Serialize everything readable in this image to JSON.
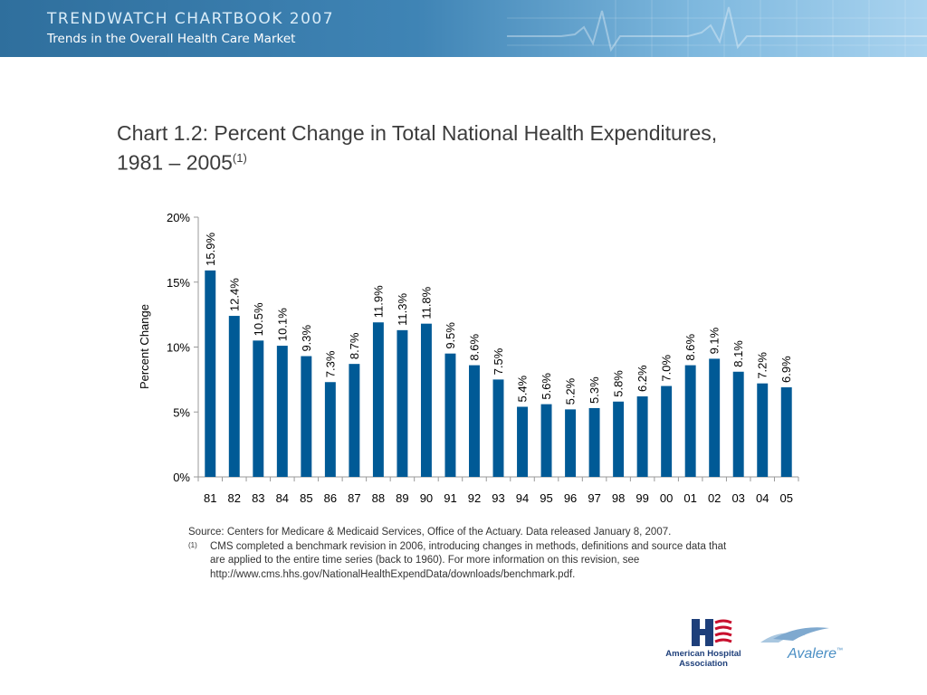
{
  "header": {
    "title": "TRENDWATCH CHARTBOOK 2007",
    "subtitle": "Trends in the Overall Health Care Market"
  },
  "chart_title": {
    "line1": "Chart 1.2: Percent Change in Total National Health Expenditures,",
    "line2": "1981 – 2005",
    "superscript": "(1)"
  },
  "chart_data": {
    "type": "bar",
    "categories": [
      "81",
      "82",
      "83",
      "84",
      "85",
      "86",
      "87",
      "88",
      "89",
      "90",
      "91",
      "92",
      "93",
      "94",
      "95",
      "96",
      "97",
      "98",
      "99",
      "00",
      "01",
      "02",
      "03",
      "04",
      "05"
    ],
    "values": [
      15.9,
      12.4,
      10.5,
      10.1,
      9.3,
      7.3,
      8.7,
      11.9,
      11.3,
      11.8,
      9.5,
      8.6,
      7.5,
      5.4,
      5.6,
      5.2,
      5.3,
      5.8,
      6.2,
      7.0,
      8.6,
      9.1,
      8.1,
      7.2,
      6.9
    ],
    "data_labels": [
      "15.9%",
      "12.4%",
      "10.5%",
      "10.1%",
      "9.3%",
      "7.3%",
      "8.7%",
      "11.9%",
      "11.3%",
      "11.8%",
      "9.5%",
      "8.6%",
      "7.5%",
      "5.4%",
      "5.6%",
      "5.2%",
      "5.3%",
      "5.8%",
      "6.2%",
      "7.0%",
      "8.6%",
      "9.1%",
      "8.1%",
      "7.2%",
      "6.9%"
    ],
    "ylabel": "Percent Change",
    "xlabel": "",
    "ylim": [
      0,
      20
    ],
    "yticks": [
      "0%",
      "5%",
      "10%",
      "15%",
      "20%"
    ],
    "grid": false,
    "legend": "none",
    "bar_color": "#005a96"
  },
  "notes": {
    "source": "Source: Centers for Medicare & Medicaid Services, Office of the Actuary.  Data released January 8, 2007.",
    "footnote_mark": "(1)",
    "footnote_line1": "CMS completed a benchmark revision in 2006, introducing changes in methods, definitions and source data that",
    "footnote_line2": "are applied to the entire time series (back to 1960).  For more information on this revision, see",
    "footnote_line3": "http://www.cms.hhs.gov/NationalHealthExpendData/downloads/benchmark.pdf."
  },
  "logos": {
    "aha_line1": "American Hospital",
    "aha_line2": "Association",
    "avalere": "Avalere",
    "avalere_tm": "™"
  },
  "colors": {
    "banner_dark": "#2f6f9d",
    "banner_light": "#a9d3ef",
    "aha_blue": "#1e3f7a",
    "aha_red": "#c8102e",
    "avalere_blue": "#4b8fc4"
  }
}
